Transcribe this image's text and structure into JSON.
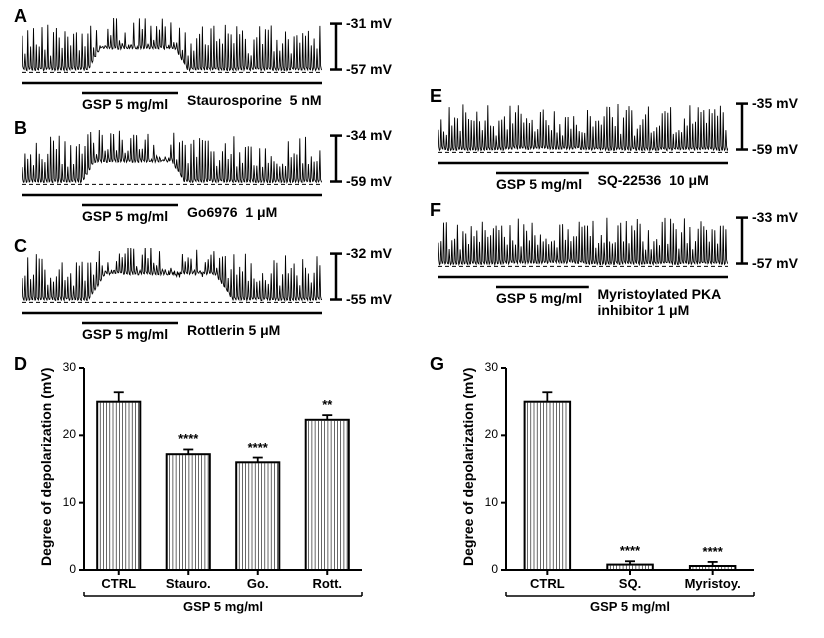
{
  "figure": {
    "background_color": "#ffffff",
    "trace_color": "#000000",
    "font_family": "Arial",
    "label_fontsize": 18,
    "text_fontsize": 14
  },
  "panels": {
    "A": {
      "label": "A",
      "scale_top": "-31 mV",
      "scale_bottom": "-57 mV",
      "gsp_label": "GSP 5 mg/ml",
      "drug_label": "Staurosporine  5 nM"
    },
    "B": {
      "label": "B",
      "scale_top": "-34 mV",
      "scale_bottom": "-59 mV",
      "gsp_label": "GSP 5 mg/ml",
      "drug_label": "Go6976  1 μM"
    },
    "C": {
      "label": "C",
      "scale_top": "-32 mV",
      "scale_bottom": "-55 mV",
      "gsp_label": "GSP 5 mg/ml",
      "drug_label": "Rottlerin 5 μM"
    },
    "E": {
      "label": "E",
      "scale_top": "-35 mV",
      "scale_bottom": "-59 mV",
      "gsp_label": "GSP 5 mg/ml",
      "drug_label": "SQ-22536  10 μM"
    },
    "F": {
      "label": "F",
      "scale_top": "-33 mV",
      "scale_bottom": "-57 mV",
      "gsp_label": "GSP 5 mg/ml",
      "drug_label": "Myristoylated PKA\ninhibitor 1 μM"
    }
  },
  "chartD": {
    "label": "D",
    "type": "bar",
    "y_label": "Degree of depolarization (mV)",
    "ylim": [
      0,
      30
    ],
    "yticks": [
      0,
      10,
      20,
      30
    ],
    "categories": [
      "CTRL",
      "Stauro.",
      "Go.",
      "Rott."
    ],
    "values": [
      25,
      17.2,
      16,
      22.3
    ],
    "errors": [
      1.4,
      0.7,
      0.7,
      0.7
    ],
    "sig": [
      "",
      "****",
      "****",
      "**"
    ],
    "bar_fill": "#ffffff",
    "bar_stroke": "#000000",
    "bar_width_ratio": 0.62,
    "group_label": "GSP 5 mg/ml"
  },
  "chartG": {
    "label": "G",
    "type": "bar",
    "y_label": "Degree of depolarization (mV)",
    "ylim": [
      0,
      30
    ],
    "yticks": [
      0,
      10,
      20,
      30
    ],
    "categories": [
      "CTRL",
      "SQ.",
      "Myristoy."
    ],
    "values": [
      25,
      0.8,
      0.6
    ],
    "errors": [
      1.4,
      0.5,
      0.6
    ],
    "sig": [
      "",
      "****",
      "****"
    ],
    "bar_fill": "#ffffff",
    "bar_stroke": "#000000",
    "bar_width_ratio": 0.55,
    "group_label": "GSP 5 mg/ml"
  }
}
